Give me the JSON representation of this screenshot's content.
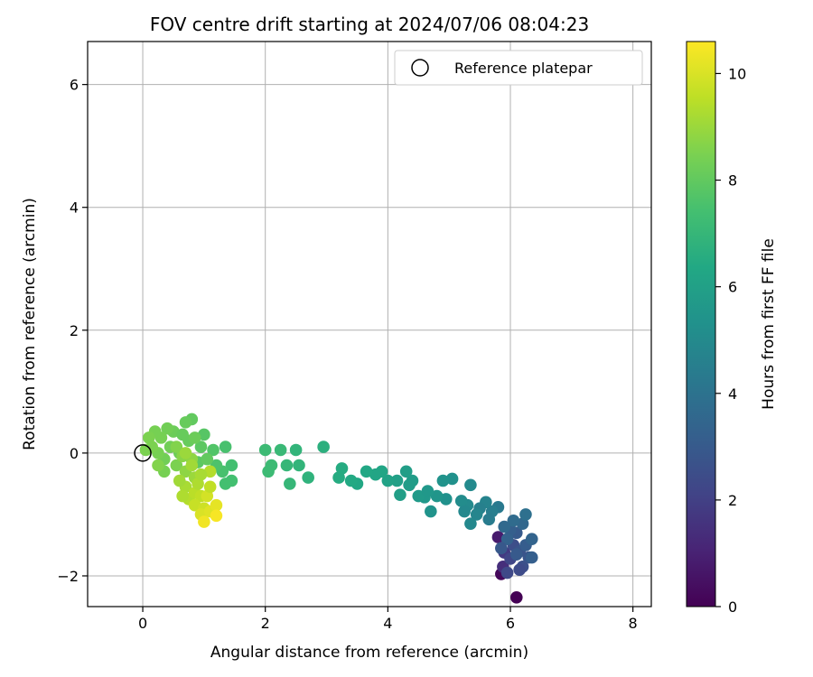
{
  "chart_data": {
    "type": "scatter",
    "title": "FOV centre drift starting at 2024/07/06 08:04:23",
    "xlabel": "Angular distance from reference (arcmin)",
    "ylabel": "Rotation from reference (arcmin)",
    "xlim": [
      -0.9,
      8.3
    ],
    "ylim": [
      -2.5,
      6.7
    ],
    "xticks": [
      0,
      2,
      4,
      6,
      8
    ],
    "yticks": [
      -2,
      0,
      2,
      4,
      6
    ],
    "xtick_labels": [
      "0",
      "2",
      "4",
      "6",
      "8"
    ],
    "ytick_labels": [
      "−2",
      "0",
      "2",
      "4",
      "6"
    ],
    "grid": true,
    "legend": {
      "placement": "top-right",
      "entries": [
        "Reference platepar"
      ]
    },
    "reference_point": {
      "x": 0,
      "y": 0
    },
    "colorbar": {
      "label": "Hours from first FF file",
      "colormap": "viridis",
      "range": [
        0,
        10.6
      ],
      "ticks": [
        0,
        2,
        4,
        6,
        8,
        10
      ],
      "tick_labels": [
        "0",
        "2",
        "4",
        "6",
        "8",
        "10"
      ]
    },
    "points": [
      {
        "x": 6.1,
        "y": -2.35,
        "h": 0.0
      },
      {
        "x": 5.85,
        "y": -1.97,
        "h": 0.2
      },
      {
        "x": 5.8,
        "y": -1.37,
        "h": 0.8
      },
      {
        "x": 5.88,
        "y": -1.85,
        "h": 1.4
      },
      {
        "x": 5.9,
        "y": -1.62,
        "h": 1.8
      },
      {
        "x": 6.0,
        "y": -1.72,
        "h": 2.2
      },
      {
        "x": 6.05,
        "y": -1.5,
        "h": 2.5
      },
      {
        "x": 6.15,
        "y": -1.6,
        "h": 2.7
      },
      {
        "x": 5.95,
        "y": -1.95,
        "h": 2.3
      },
      {
        "x": 6.2,
        "y": -1.85,
        "h": 2.6
      },
      {
        "x": 6.3,
        "y": -1.7,
        "h": 2.8
      },
      {
        "x": 6.1,
        "y": -1.3,
        "h": 3.0
      },
      {
        "x": 6.0,
        "y": -1.25,
        "h": 3.2
      },
      {
        "x": 6.25,
        "y": -1.5,
        "h": 3.1
      },
      {
        "x": 5.95,
        "y": -1.4,
        "h": 3.3
      },
      {
        "x": 6.2,
        "y": -1.15,
        "h": 3.5
      },
      {
        "x": 6.35,
        "y": -1.4,
        "h": 3.4
      },
      {
        "x": 6.05,
        "y": -1.1,
        "h": 3.7
      },
      {
        "x": 6.25,
        "y": -1.0,
        "h": 3.9
      },
      {
        "x": 5.9,
        "y": -1.2,
        "h": 3.6
      },
      {
        "x": 6.1,
        "y": -1.65,
        "h": 3.0
      },
      {
        "x": 5.85,
        "y": -1.55,
        "h": 2.9
      },
      {
        "x": 6.35,
        "y": -1.7,
        "h": 3.2
      },
      {
        "x": 6.15,
        "y": -1.9,
        "h": 2.4
      },
      {
        "x": 5.8,
        "y": -0.88,
        "h": 4.3
      },
      {
        "x": 5.7,
        "y": -0.95,
        "h": 4.5
      },
      {
        "x": 5.6,
        "y": -0.8,
        "h": 4.7
      },
      {
        "x": 5.5,
        "y": -0.9,
        "h": 4.6
      },
      {
        "x": 5.65,
        "y": -1.08,
        "h": 4.4
      },
      {
        "x": 5.45,
        "y": -1.0,
        "h": 4.8
      },
      {
        "x": 5.35,
        "y": -1.15,
        "h": 4.9
      },
      {
        "x": 5.3,
        "y": -0.85,
        "h": 5.0
      },
      {
        "x": 5.2,
        "y": -0.78,
        "h": 5.1
      },
      {
        "x": 5.35,
        "y": -0.52,
        "h": 5.0
      },
      {
        "x": 5.25,
        "y": -0.95,
        "h": 4.9
      },
      {
        "x": 5.05,
        "y": -0.42,
        "h": 5.3
      },
      {
        "x": 4.9,
        "y": -0.45,
        "h": 5.4
      },
      {
        "x": 4.95,
        "y": -0.75,
        "h": 5.3
      },
      {
        "x": 4.8,
        "y": -0.7,
        "h": 5.5
      },
      {
        "x": 4.7,
        "y": -0.95,
        "h": 5.4
      },
      {
        "x": 4.6,
        "y": -0.72,
        "h": 5.6
      },
      {
        "x": 4.5,
        "y": -0.7,
        "h": 5.7
      },
      {
        "x": 4.65,
        "y": -0.62,
        "h": 5.6
      },
      {
        "x": 4.4,
        "y": -0.45,
        "h": 5.8
      },
      {
        "x": 4.3,
        "y": -0.3,
        "h": 5.9
      },
      {
        "x": 4.35,
        "y": -0.52,
        "h": 5.8
      },
      {
        "x": 4.15,
        "y": -0.45,
        "h": 6.0
      },
      {
        "x": 4.2,
        "y": -0.68,
        "h": 5.9
      },
      {
        "x": 4.0,
        "y": -0.45,
        "h": 6.1
      },
      {
        "x": 3.9,
        "y": -0.3,
        "h": 6.2
      },
      {
        "x": 3.8,
        "y": -0.35,
        "h": 6.2
      },
      {
        "x": 3.65,
        "y": -0.3,
        "h": 6.3
      },
      {
        "x": 3.5,
        "y": -0.5,
        "h": 6.3
      },
      {
        "x": 3.4,
        "y": -0.45,
        "h": 6.4
      },
      {
        "x": 3.25,
        "y": -0.25,
        "h": 6.5
      },
      {
        "x": 3.2,
        "y": -0.4,
        "h": 6.5
      },
      {
        "x": 2.95,
        "y": 0.1,
        "h": 6.7
      },
      {
        "x": 2.7,
        "y": -0.4,
        "h": 6.8
      },
      {
        "x": 2.55,
        "y": -0.2,
        "h": 6.9
      },
      {
        "x": 2.5,
        "y": 0.05,
        "h": 6.9
      },
      {
        "x": 2.4,
        "y": -0.5,
        "h": 7.0
      },
      {
        "x": 2.35,
        "y": -0.2,
        "h": 7.0
      },
      {
        "x": 2.25,
        "y": 0.05,
        "h": 7.1
      },
      {
        "x": 2.1,
        "y": -0.2,
        "h": 7.2
      },
      {
        "x": 2.0,
        "y": 0.05,
        "h": 7.2
      },
      {
        "x": 2.05,
        "y": -0.3,
        "h": 7.2
      },
      {
        "x": 1.45,
        "y": -0.45,
        "h": 7.4
      },
      {
        "x": 1.45,
        "y": -0.2,
        "h": 7.4
      },
      {
        "x": 1.35,
        "y": 0.1,
        "h": 7.5
      },
      {
        "x": 1.3,
        "y": -0.3,
        "h": 7.5
      },
      {
        "x": 1.35,
        "y": -0.5,
        "h": 7.4
      },
      {
        "x": 1.2,
        "y": -0.2,
        "h": 7.6
      },
      {
        "x": 1.15,
        "y": 0.05,
        "h": 7.7
      },
      {
        "x": 1.0,
        "y": 0.3,
        "h": 7.8
      },
      {
        "x": 0.95,
        "y": 0.1,
        "h": 7.9
      },
      {
        "x": 0.9,
        "y": -0.15,
        "h": 7.9
      },
      {
        "x": 0.8,
        "y": 0.55,
        "h": 8.0
      },
      {
        "x": 0.7,
        "y": 0.5,
        "h": 8.1
      },
      {
        "x": 0.75,
        "y": 0.2,
        "h": 8.1
      },
      {
        "x": 0.6,
        "y": 0.0,
        "h": 8.2
      },
      {
        "x": 0.5,
        "y": 0.35,
        "h": 8.2
      },
      {
        "x": 0.4,
        "y": 0.4,
        "h": 8.3
      },
      {
        "x": 0.45,
        "y": 0.1,
        "h": 8.3
      },
      {
        "x": 0.35,
        "y": -0.1,
        "h": 8.3
      },
      {
        "x": 0.3,
        "y": 0.25,
        "h": 8.4
      },
      {
        "x": 0.25,
        "y": 0.0,
        "h": 8.4
      },
      {
        "x": 0.2,
        "y": 0.35,
        "h": 8.4
      },
      {
        "x": 0.15,
        "y": 0.1,
        "h": 8.5
      },
      {
        "x": 0.1,
        "y": 0.25,
        "h": 8.5
      },
      {
        "x": 0.05,
        "y": 0.05,
        "h": 8.5
      },
      {
        "x": 0.35,
        "y": -0.3,
        "h": 8.4
      },
      {
        "x": 0.55,
        "y": -0.2,
        "h": 8.5
      },
      {
        "x": 0.85,
        "y": 0.25,
        "h": 8.2
      },
      {
        "x": 1.05,
        "y": -0.1,
        "h": 8.0
      },
      {
        "x": 0.65,
        "y": 0.3,
        "h": 8.1
      },
      {
        "x": 0.25,
        "y": -0.2,
        "h": 8.6
      },
      {
        "x": 0.65,
        "y": -0.05,
        "h": 8.7
      },
      {
        "x": 0.7,
        "y": -0.3,
        "h": 8.8
      },
      {
        "x": 0.8,
        "y": -0.1,
        "h": 8.8
      },
      {
        "x": 0.55,
        "y": 0.1,
        "h": 8.6
      },
      {
        "x": 0.85,
        "y": -0.4,
        "h": 9.0
      },
      {
        "x": 0.7,
        "y": -0.55,
        "h": 9.2
      },
      {
        "x": 0.6,
        "y": -0.45,
        "h": 9.1
      },
      {
        "x": 0.75,
        "y": -0.75,
        "h": 9.4
      },
      {
        "x": 0.85,
        "y": -0.65,
        "h": 9.5
      },
      {
        "x": 0.9,
        "y": -0.5,
        "h": 9.3
      },
      {
        "x": 0.95,
        "y": -0.7,
        "h": 9.6
      },
      {
        "x": 0.85,
        "y": -0.85,
        "h": 9.7
      },
      {
        "x": 1.0,
        "y": -0.9,
        "h": 9.8
      },
      {
        "x": 1.05,
        "y": -0.7,
        "h": 9.9
      },
      {
        "x": 0.95,
        "y": -1.0,
        "h": 10.0
      },
      {
        "x": 1.1,
        "y": -0.95,
        "h": 10.1
      },
      {
        "x": 1.2,
        "y": -0.85,
        "h": 10.2
      },
      {
        "x": 1.0,
        "y": -1.12,
        "h": 10.4
      },
      {
        "x": 1.2,
        "y": -1.02,
        "h": 10.5
      },
      {
        "x": 1.1,
        "y": -0.55,
        "h": 9.6
      },
      {
        "x": 1.1,
        "y": -0.3,
        "h": 9.4
      },
      {
        "x": 0.95,
        "y": -0.35,
        "h": 9.2
      },
      {
        "x": 0.65,
        "y": -0.7,
        "h": 9.3
      },
      {
        "x": 0.7,
        "y": 0.0,
        "h": 9.0
      },
      {
        "x": 0.8,
        "y": -0.2,
        "h": 9.1
      }
    ]
  }
}
